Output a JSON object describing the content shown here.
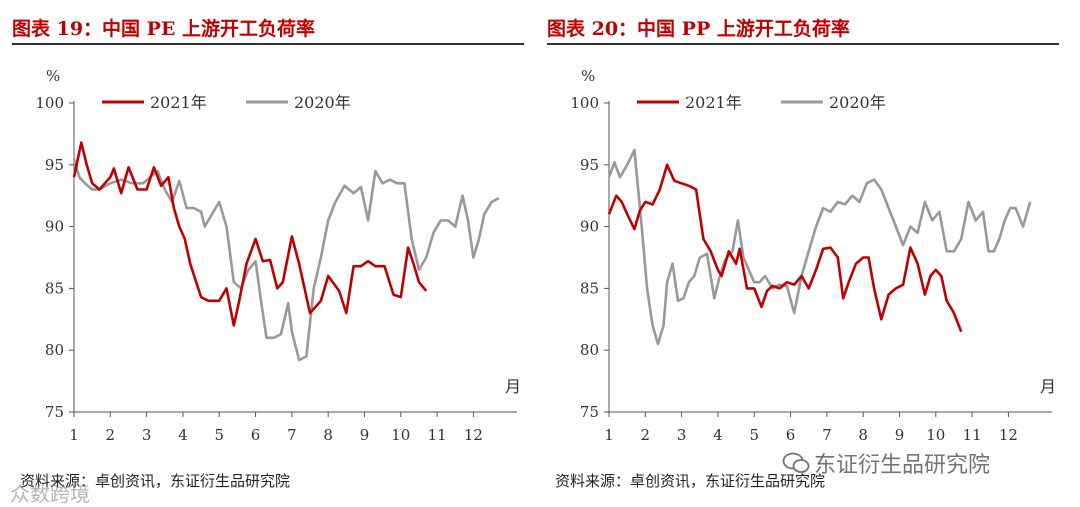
{
  "watermark": {
    "left": "众数跨境",
    "right": "东证衍生品研究院",
    "right_icon": "wechat-icon"
  },
  "colors": {
    "y2021": "#c00000",
    "y2020": "#999999",
    "title": "#c00000"
  },
  "chart_data": [
    {
      "type": "line",
      "title": "图表 19：中国 PE 上游开工负荷率",
      "unit_label": "%",
      "xlabel": "月",
      "ylim": [
        75,
        100
      ],
      "yticks": [
        "75",
        "80",
        "85",
        "90",
        "95",
        "100"
      ],
      "xlim": [
        1,
        13.2
      ],
      "xticks": [
        "1",
        "2",
        "3",
        "4",
        "5",
        "6",
        "7",
        "8",
        "9",
        "10",
        "11",
        "12"
      ],
      "legend": {
        "placement": "top",
        "entries": [
          "2021年",
          "2020年"
        ]
      },
      "source": "资料来源：卓创资讯，东证衍生品研究院",
      "series": [
        {
          "name": "2021年",
          "color": "#c00000",
          "x": [
            1.0,
            1.2,
            1.35,
            1.5,
            1.7,
            2.0,
            2.1,
            2.3,
            2.5,
            2.75,
            3.0,
            3.2,
            3.4,
            3.6,
            3.75,
            3.9,
            4.05,
            4.2,
            4.5,
            4.7,
            5.0,
            5.2,
            5.4,
            5.55,
            5.75,
            6.0,
            6.2,
            6.4,
            6.6,
            6.75,
            7.0,
            7.2,
            7.5,
            7.8,
            8.0,
            8.3,
            8.5,
            8.7,
            8.9,
            9.1,
            9.3,
            9.55,
            9.8,
            10.0,
            10.2,
            10.35,
            10.5,
            10.7
          ],
          "values": [
            94,
            96.8,
            95.0,
            93.5,
            93.0,
            94.0,
            94.7,
            92.7,
            94.8,
            93.0,
            93.0,
            94.8,
            93.3,
            94.0,
            91.5,
            90.0,
            89.0,
            87.0,
            84.3,
            84.0,
            84.0,
            85.0,
            82.0,
            84.0,
            87.0,
            89.0,
            87.2,
            87.3,
            85.0,
            85.5,
            89.2,
            87.0,
            83.0,
            84.0,
            86.0,
            84.8,
            83.0,
            86.8,
            86.8,
            87.2,
            86.8,
            86.8,
            84.5,
            84.3,
            88.3,
            87.0,
            85.5,
            84.8
          ]
        },
        {
          "name": "2020年",
          "color": "#999999",
          "x": [
            1.0,
            1.15,
            1.3,
            1.5,
            1.7,
            2.0,
            2.3,
            2.6,
            2.9,
            3.1,
            3.3,
            3.5,
            3.7,
            3.9,
            4.1,
            4.3,
            4.5,
            4.6,
            4.8,
            5.0,
            5.2,
            5.4,
            5.6,
            5.8,
            6.0,
            6.15,
            6.3,
            6.5,
            6.7,
            6.9,
            7.0,
            7.2,
            7.4,
            7.6,
            7.8,
            8.0,
            8.2,
            8.45,
            8.7,
            8.9,
            9.1,
            9.3,
            9.5,
            9.7,
            9.9,
            10.1,
            10.3,
            10.5,
            10.7,
            10.9,
            11.1,
            11.3,
            11.5,
            11.7,
            11.85,
            12.0,
            12.15,
            12.3,
            12.5,
            12.7
          ],
          "values": [
            95.5,
            94.0,
            93.5,
            93.0,
            93.0,
            93.5,
            93.8,
            93.5,
            93.5,
            94.0,
            94.5,
            93.0,
            92.0,
            93.7,
            91.5,
            91.5,
            91.2,
            90.0,
            91.0,
            92.0,
            90.0,
            85.5,
            85.0,
            86.5,
            87.2,
            84.0,
            81.0,
            81.0,
            81.3,
            83.8,
            81.5,
            79.2,
            79.5,
            85.0,
            87.5,
            90.5,
            92.0,
            93.3,
            92.7,
            93.2,
            90.5,
            94.5,
            93.5,
            93.8,
            93.5,
            93.5,
            89.0,
            86.5,
            87.5,
            89.5,
            90.5,
            90.5,
            90.0,
            92.5,
            90.5,
            87.5,
            89.0,
            91.0,
            92.0,
            92.3
          ]
        }
      ]
    },
    {
      "type": "line",
      "title": "图表 20：中国 PP 上游开工负荷率",
      "unit_label": "%",
      "xlabel": "月",
      "ylim": [
        75,
        100
      ],
      "yticks": [
        "75",
        "80",
        "85",
        "90",
        "95",
        "100"
      ],
      "xlim": [
        1,
        13.2
      ],
      "xticks": [
        "1",
        "2",
        "3",
        "4",
        "5",
        "6",
        "7",
        "8",
        "9",
        "10",
        "11",
        "12"
      ],
      "legend": {
        "placement": "top",
        "entries": [
          "2021年",
          "2020年"
        ]
      },
      "source": "资料来源：卓创资讯，东证衍生品研究院",
      "series": [
        {
          "name": "2021年",
          "color": "#c00000",
          "x": [
            1.0,
            1.2,
            1.35,
            1.5,
            1.7,
            1.85,
            2.0,
            2.2,
            2.4,
            2.6,
            2.8,
            3.0,
            3.2,
            3.4,
            3.6,
            3.8,
            4.0,
            4.1,
            4.3,
            4.5,
            4.6,
            4.8,
            5.0,
            5.2,
            5.35,
            5.5,
            5.7,
            5.9,
            6.1,
            6.3,
            6.5,
            6.7,
            6.9,
            7.1,
            7.3,
            7.45,
            7.6,
            7.8,
            8.0,
            8.15,
            8.3,
            8.5,
            8.7,
            8.9,
            9.1,
            9.3,
            9.5,
            9.7,
            9.85,
            10.0,
            10.15,
            10.3,
            10.5,
            10.7
          ],
          "values": [
            91.0,
            92.5,
            92.0,
            91.0,
            89.8,
            91.3,
            92.0,
            91.8,
            93.0,
            95.0,
            93.7,
            93.5,
            93.3,
            93.0,
            89.0,
            88.0,
            86.5,
            86.0,
            88.0,
            87.0,
            88.2,
            85.0,
            85.0,
            83.5,
            84.8,
            85.2,
            85.0,
            85.5,
            85.3,
            86.0,
            85.0,
            86.5,
            88.2,
            88.3,
            87.5,
            84.2,
            85.5,
            87.0,
            87.5,
            87.5,
            85.0,
            82.5,
            84.5,
            85.0,
            85.3,
            88.3,
            87.0,
            84.5,
            86.0,
            86.5,
            86.0,
            84.0,
            83.0,
            81.5
          ]
        },
        {
          "name": "2020年",
          "color": "#999999",
          "x": [
            1.0,
            1.15,
            1.3,
            1.5,
            1.7,
            1.9,
            2.05,
            2.2,
            2.35,
            2.5,
            2.6,
            2.75,
            2.9,
            3.05,
            3.2,
            3.35,
            3.5,
            3.7,
            3.9,
            4.05,
            4.2,
            4.4,
            4.55,
            4.7,
            4.85,
            5.0,
            5.15,
            5.3,
            5.5,
            5.7,
            5.9,
            6.1,
            6.3,
            6.5,
            6.7,
            6.9,
            7.1,
            7.3,
            7.5,
            7.7,
            7.9,
            8.1,
            8.3,
            8.5,
            8.7,
            8.9,
            9.1,
            9.3,
            9.5,
            9.7,
            9.9,
            10.1,
            10.3,
            10.5,
            10.7,
            10.9,
            11.1,
            11.3,
            11.45,
            11.6,
            11.75,
            11.9,
            12.05,
            12.2,
            12.4,
            12.6
          ],
          "values": [
            94.0,
            95.2,
            94.0,
            95.0,
            96.2,
            90.0,
            85.0,
            82.0,
            80.5,
            82.0,
            85.5,
            87.0,
            84.0,
            84.2,
            85.5,
            86.0,
            87.5,
            87.8,
            84.2,
            86.0,
            87.3,
            88.0,
            90.5,
            87.5,
            86.5,
            85.5,
            85.5,
            86.0,
            85.0,
            85.3,
            85.2,
            83.0,
            86.0,
            88.0,
            90.0,
            91.5,
            91.2,
            92.0,
            91.8,
            92.5,
            92.0,
            93.5,
            93.8,
            93.0,
            91.5,
            90.0,
            88.5,
            90.0,
            89.5,
            92.0,
            90.5,
            91.2,
            88.0,
            88.0,
            89.0,
            92.0,
            90.5,
            91.2,
            88.0,
            88.0,
            89.0,
            90.5,
            91.5,
            91.5,
            90.0,
            92.0
          ]
        }
      ]
    }
  ]
}
